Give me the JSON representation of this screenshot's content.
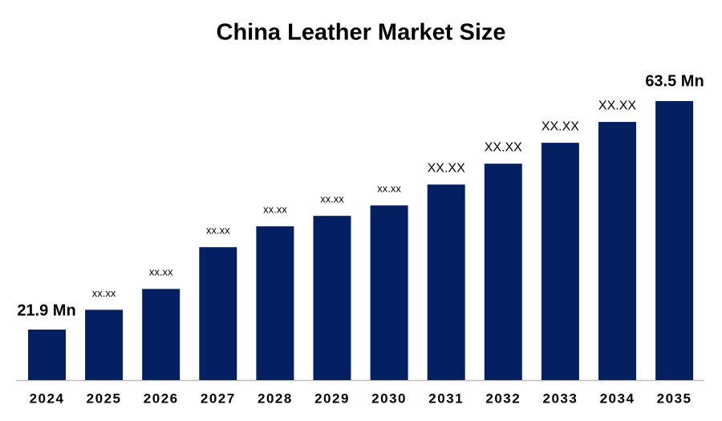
{
  "chart_data": {
    "type": "bar",
    "title": "China Leather Market Size",
    "categories": [
      "2024",
      "2025",
      "2026",
      "2027",
      "2028",
      "2029",
      "2030",
      "2031",
      "2032",
      "2033",
      "2034",
      "2035"
    ],
    "values": [
      21.9,
      25.5,
      29.3,
      36.9,
      40.7,
      42.6,
      44.5,
      48.3,
      52.1,
      55.9,
      59.7,
      63.5
    ],
    "value_labels": [
      "21.9 Mn",
      "xx.xx",
      "xx.xx",
      "xx.xx",
      "xx.xx",
      "xx.xx",
      "xx.xx",
      "XX.XX",
      "XX.XX",
      "XX.XX",
      "XX.XX",
      "63.5 Mn"
    ],
    "color": "#042060",
    "ylim": [
      12.7,
      67.3
    ]
  }
}
